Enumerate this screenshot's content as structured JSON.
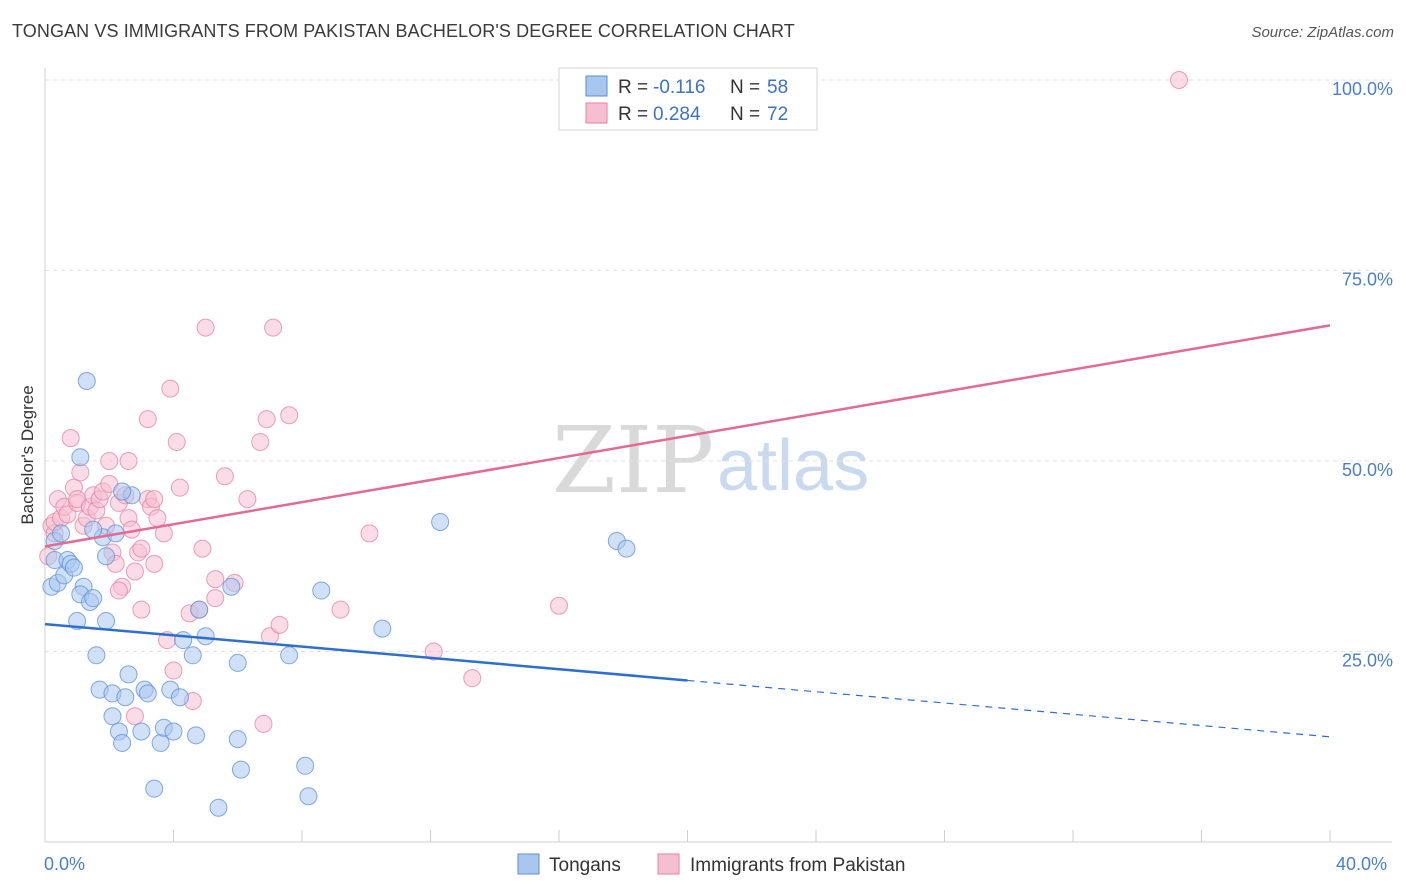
{
  "title": "TONGAN VS IMMIGRANTS FROM PAKISTAN BACHELOR'S DEGREE CORRELATION CHART",
  "source": "Source: ZipAtlas.com",
  "watermark": {
    "zip": "ZIP",
    "atlas": "atlas"
  },
  "legend_top": [
    {
      "r_label": "R =",
      "r_value": "-0.116",
      "n_label": "N =",
      "n_value": "58"
    },
    {
      "r_label": "R =",
      "r_value": "0.284",
      "n_label": "N =",
      "n_value": "72"
    }
  ],
  "legend_bottom": [
    "Tongans",
    "Immigrants from Pakistan"
  ],
  "colors": {
    "blue_fill": "#a9c7ee",
    "blue_stroke": "#5b8fd4",
    "blue_line": "#2d6fcf",
    "pink_fill": "#f6bfd1",
    "pink_stroke": "#e77fa2",
    "pink_line": "#e36a95",
    "grid": "#e2e2e2",
    "tick_label": "#4a7fc8"
  },
  "chart_data": {
    "type": "scatter",
    "title": "TONGAN VS IMMIGRANTS FROM PAKISTAN BACHELOR'S DEGREE CORRELATION CHART",
    "xlabel": "",
    "ylabel": "Bachelor's Degree",
    "xlim": [
      0,
      40
    ],
    "ylim": [
      0,
      100
    ],
    "x_tick_labels": [
      "0.0%",
      "40.0%"
    ],
    "y_tick_labels": [
      "25.0%",
      "50.0%",
      "75.0%",
      "100.0%"
    ],
    "y_ticks": [
      25,
      50,
      75,
      100
    ],
    "grid": true,
    "series": [
      {
        "name": "Tongans",
        "r": -0.116,
        "n": 58,
        "trend": {
          "x0": 0,
          "y0": 28.6,
          "x1": 40,
          "y1": 13.8,
          "solid_until_x": 20
        },
        "points": [
          [
            0.2,
            33.5
          ],
          [
            0.3,
            37.0
          ],
          [
            0.4,
            34.0
          ],
          [
            0.6,
            35.0
          ],
          [
            0.7,
            37.0
          ],
          [
            0.8,
            36.5
          ],
          [
            0.9,
            36.0
          ],
          [
            0.3,
            39.5
          ],
          [
            1.0,
            29.0
          ],
          [
            1.2,
            33.5
          ],
          [
            1.1,
            32.5
          ],
          [
            1.4,
            31.5
          ],
          [
            1.5,
            32.0
          ],
          [
            1.3,
            60.5
          ],
          [
            1.1,
            50.5
          ],
          [
            1.6,
            24.5
          ],
          [
            1.7,
            20.0
          ],
          [
            1.8,
            40.0
          ],
          [
            1.9,
            37.5
          ],
          [
            1.9,
            29.0
          ],
          [
            2.1,
            16.5
          ],
          [
            2.1,
            19.5
          ],
          [
            2.2,
            40.5
          ],
          [
            2.3,
            14.5
          ],
          [
            2.4,
            13.0
          ],
          [
            2.5,
            19.0
          ],
          [
            2.6,
            22.0
          ],
          [
            2.7,
            45.5
          ],
          [
            3.0,
            14.5
          ],
          [
            3.1,
            20.0
          ],
          [
            3.2,
            19.5
          ],
          [
            3.4,
            7.0
          ],
          [
            3.6,
            13.0
          ],
          [
            3.7,
            15.0
          ],
          [
            3.9,
            20.0
          ],
          [
            4.0,
            14.5
          ],
          [
            4.2,
            19.0
          ],
          [
            4.3,
            26.5
          ],
          [
            4.6,
            24.5
          ],
          [
            4.7,
            14.0
          ],
          [
            4.8,
            30.5
          ],
          [
            5.0,
            27.0
          ],
          [
            5.4,
            4.5
          ],
          [
            5.8,
            33.5
          ],
          [
            6.0,
            23.5
          ],
          [
            6.0,
            13.5
          ],
          [
            6.1,
            9.5
          ],
          [
            7.6,
            24.5
          ],
          [
            8.1,
            10.0
          ],
          [
            8.2,
            6.0
          ],
          [
            8.6,
            33.0
          ],
          [
            10.5,
            28.0
          ],
          [
            12.3,
            42.0
          ],
          [
            17.8,
            39.5
          ],
          [
            18.1,
            38.5
          ],
          [
            0.5,
            40.5
          ],
          [
            1.5,
            41.0
          ],
          [
            2.4,
            46.0
          ]
        ]
      },
      {
        "name": "Immigrants from Pakistan",
        "r": 0.284,
        "n": 72,
        "trend": {
          "x0": 0,
          "y0": 38.8,
          "x1": 40,
          "y1": 67.8
        },
        "points": [
          [
            0.1,
            37.5
          ],
          [
            0.2,
            41.5
          ],
          [
            0.3,
            40.5
          ],
          [
            0.3,
            42.0
          ],
          [
            0.4,
            45.0
          ],
          [
            0.5,
            42.5
          ],
          [
            0.6,
            44.0
          ],
          [
            0.7,
            43.0
          ],
          [
            0.8,
            53.0
          ],
          [
            0.9,
            46.5
          ],
          [
            1.0,
            44.5
          ],
          [
            1.0,
            45.0
          ],
          [
            1.1,
            48.5
          ],
          [
            1.2,
            41.5
          ],
          [
            1.3,
            42.5
          ],
          [
            1.4,
            44.0
          ],
          [
            1.5,
            45.5
          ],
          [
            1.6,
            43.5
          ],
          [
            1.7,
            45.0
          ],
          [
            1.8,
            46.0
          ],
          [
            1.9,
            41.5
          ],
          [
            2.0,
            47.0
          ],
          [
            2.0,
            50.0
          ],
          [
            2.1,
            38.0
          ],
          [
            2.2,
            36.5
          ],
          [
            2.3,
            44.5
          ],
          [
            2.4,
            33.5
          ],
          [
            2.5,
            45.5
          ],
          [
            2.6,
            50.0
          ],
          [
            2.6,
            42.5
          ],
          [
            2.7,
            41.0
          ],
          [
            2.8,
            35.5
          ],
          [
            2.8,
            16.5
          ],
          [
            2.9,
            38.0
          ],
          [
            3.0,
            38.5
          ],
          [
            3.0,
            30.5
          ],
          [
            3.2,
            45.0
          ],
          [
            3.2,
            55.5
          ],
          [
            3.3,
            44.0
          ],
          [
            3.4,
            36.5
          ],
          [
            3.4,
            45.0
          ],
          [
            3.5,
            42.5
          ],
          [
            3.7,
            40.5
          ],
          [
            3.8,
            26.5
          ],
          [
            3.9,
            59.5
          ],
          [
            4.0,
            22.5
          ],
          [
            4.1,
            52.5
          ],
          [
            4.2,
            46.5
          ],
          [
            4.5,
            30.0
          ],
          [
            4.6,
            18.5
          ],
          [
            4.8,
            30.5
          ],
          [
            4.9,
            38.5
          ],
          [
            5.0,
            67.5
          ],
          [
            5.3,
            32.0
          ],
          [
            5.3,
            34.5
          ],
          [
            5.6,
            48.0
          ],
          [
            5.9,
            34.0
          ],
          [
            6.3,
            45.0
          ],
          [
            6.7,
            52.5
          ],
          [
            6.8,
            15.5
          ],
          [
            6.9,
            55.5
          ],
          [
            7.0,
            27.0
          ],
          [
            7.1,
            67.5
          ],
          [
            7.3,
            28.5
          ],
          [
            7.6,
            56.0
          ],
          [
            9.2,
            30.5
          ],
          [
            10.1,
            40.5
          ],
          [
            12.1,
            25.0
          ],
          [
            13.3,
            21.5
          ],
          [
            16.0,
            31.0
          ],
          [
            35.3,
            100.0
          ],
          [
            2.3,
            33.0
          ]
        ]
      }
    ]
  }
}
